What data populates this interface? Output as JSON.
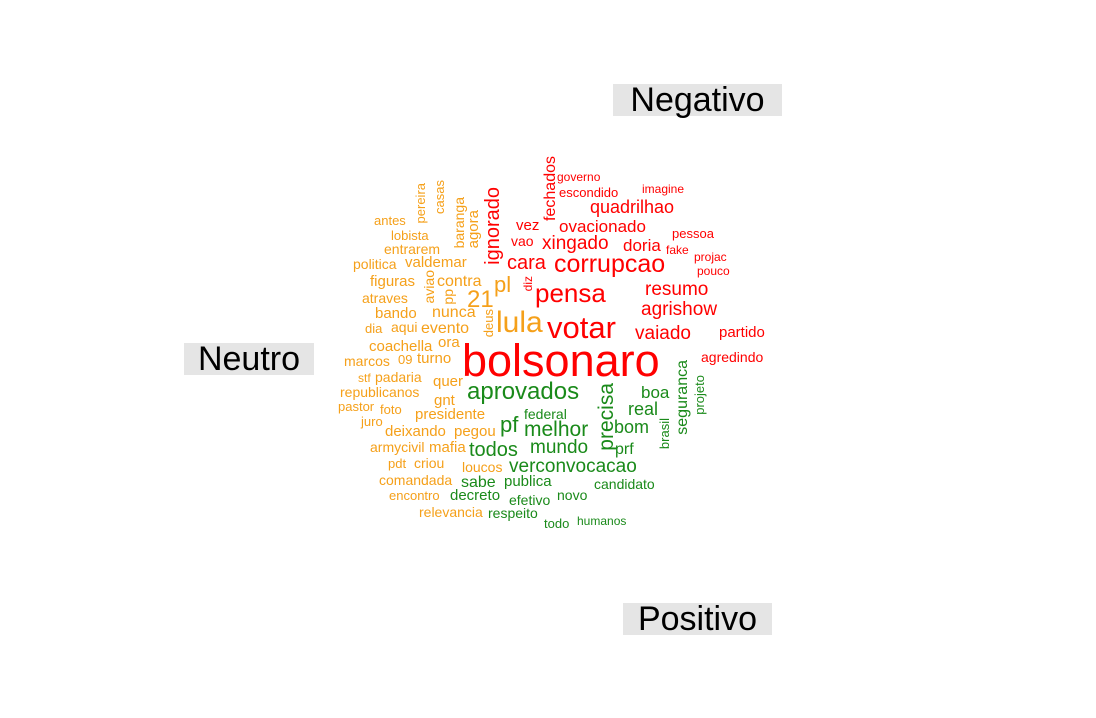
{
  "labels": {
    "negative": "Negativo",
    "neutral": "Neutro",
    "positive": "Positivo"
  },
  "colors": {
    "negative": "#ff0000",
    "neutral": "#f5a01a",
    "positive": "#1a8a1a",
    "label_bg": "#e5e5e5"
  },
  "words": [
    {
      "text": "bolsonaro",
      "class": "negative"
    },
    {
      "text": "corrupcao",
      "class": "negative"
    },
    {
      "text": "votar",
      "class": "negative"
    },
    {
      "text": "pensa",
      "class": "negative"
    },
    {
      "text": "cara",
      "class": "negative"
    },
    {
      "text": "xingado",
      "class": "negative"
    },
    {
      "text": "ovacionado",
      "class": "negative"
    },
    {
      "text": "quadrilhao",
      "class": "negative"
    },
    {
      "text": "resumo",
      "class": "negative"
    },
    {
      "text": "agrishow",
      "class": "negative"
    },
    {
      "text": "vaiado",
      "class": "negative"
    },
    {
      "text": "doria",
      "class": "negative"
    },
    {
      "text": "partido",
      "class": "negative"
    },
    {
      "text": "agredindo",
      "class": "negative"
    },
    {
      "text": "ignorado",
      "class": "negative"
    },
    {
      "text": "fechados",
      "class": "negative"
    },
    {
      "text": "vez",
      "class": "negative"
    },
    {
      "text": "vao",
      "class": "negative"
    },
    {
      "text": "governo",
      "class": "negative"
    },
    {
      "text": "escondido",
      "class": "negative"
    },
    {
      "text": "imagine",
      "class": "negative"
    },
    {
      "text": "pessoa",
      "class": "negative"
    },
    {
      "text": "fake",
      "class": "negative"
    },
    {
      "text": "projac",
      "class": "negative"
    },
    {
      "text": "pouco",
      "class": "negative"
    },
    {
      "text": "diz",
      "class": "negative"
    },
    {
      "text": "lula",
      "class": "neutral"
    },
    {
      "text": "pl",
      "class": "neutral"
    },
    {
      "text": "21",
      "class": "neutral"
    },
    {
      "text": "contra",
      "class": "neutral"
    },
    {
      "text": "nunca",
      "class": "neutral"
    },
    {
      "text": "evento",
      "class": "neutral"
    },
    {
      "text": "coachella",
      "class": "neutral"
    },
    {
      "text": "ora",
      "class": "neutral"
    },
    {
      "text": "turno",
      "class": "neutral"
    },
    {
      "text": "marcos",
      "class": "neutral"
    },
    {
      "text": "09",
      "class": "neutral"
    },
    {
      "text": "padaria",
      "class": "neutral"
    },
    {
      "text": "quer",
      "class": "neutral"
    },
    {
      "text": "republicanos",
      "class": "neutral"
    },
    {
      "text": "gnt",
      "class": "neutral"
    },
    {
      "text": "stf",
      "class": "neutral"
    },
    {
      "text": "pastor",
      "class": "neutral"
    },
    {
      "text": "foto",
      "class": "neutral"
    },
    {
      "text": "presidente",
      "class": "neutral"
    },
    {
      "text": "juro",
      "class": "neutral"
    },
    {
      "text": "deixando",
      "class": "neutral"
    },
    {
      "text": "pegou",
      "class": "neutral"
    },
    {
      "text": "armycivil",
      "class": "neutral"
    },
    {
      "text": "mafia",
      "class": "neutral"
    },
    {
      "text": "pdt",
      "class": "neutral"
    },
    {
      "text": "criou",
      "class": "neutral"
    },
    {
      "text": "loucos",
      "class": "neutral"
    },
    {
      "text": "comandada",
      "class": "neutral"
    },
    {
      "text": "encontro",
      "class": "neutral"
    },
    {
      "text": "relevancia",
      "class": "neutral"
    },
    {
      "text": "bando",
      "class": "neutral"
    },
    {
      "text": "aqui",
      "class": "neutral"
    },
    {
      "text": "dia",
      "class": "neutral"
    },
    {
      "text": "atraves",
      "class": "neutral"
    },
    {
      "text": "figuras",
      "class": "neutral"
    },
    {
      "text": "politica",
      "class": "neutral"
    },
    {
      "text": "valdemar",
      "class": "neutral"
    },
    {
      "text": "entrarem",
      "class": "neutral"
    },
    {
      "text": "lobista",
      "class": "neutral"
    },
    {
      "text": "antes",
      "class": "neutral"
    },
    {
      "text": "pereira",
      "class": "neutral"
    },
    {
      "text": "casas",
      "class": "neutral"
    },
    {
      "text": "baranga",
      "class": "neutral"
    },
    {
      "text": "agora",
      "class": "neutral"
    },
    {
      "text": "aviao",
      "class": "neutral"
    },
    {
      "text": "pp",
      "class": "neutral"
    },
    {
      "text": "deus",
      "class": "neutral"
    },
    {
      "text": "aprovados",
      "class": "positive"
    },
    {
      "text": "melhor",
      "class": "positive"
    },
    {
      "text": "pf",
      "class": "positive"
    },
    {
      "text": "todos",
      "class": "positive"
    },
    {
      "text": "mundo",
      "class": "positive"
    },
    {
      "text": "verconvocacao",
      "class": "positive"
    },
    {
      "text": "precisa",
      "class": "positive"
    },
    {
      "text": "boa",
      "class": "positive"
    },
    {
      "text": "real",
      "class": "positive"
    },
    {
      "text": "bom",
      "class": "positive"
    },
    {
      "text": "prf",
      "class": "positive"
    },
    {
      "text": "seguranca",
      "class": "positive"
    },
    {
      "text": "projeto",
      "class": "positive"
    },
    {
      "text": "brasil",
      "class": "positive"
    },
    {
      "text": "federal",
      "class": "positive"
    },
    {
      "text": "sabe",
      "class": "positive"
    },
    {
      "text": "publica",
      "class": "positive"
    },
    {
      "text": "decreto",
      "class": "positive"
    },
    {
      "text": "efetivo",
      "class": "positive"
    },
    {
      "text": "novo",
      "class": "positive"
    },
    {
      "text": "candidato",
      "class": "positive"
    },
    {
      "text": "respeito",
      "class": "positive"
    },
    {
      "text": "todo",
      "class": "positive"
    },
    {
      "text": "humanos",
      "class": "positive"
    }
  ]
}
